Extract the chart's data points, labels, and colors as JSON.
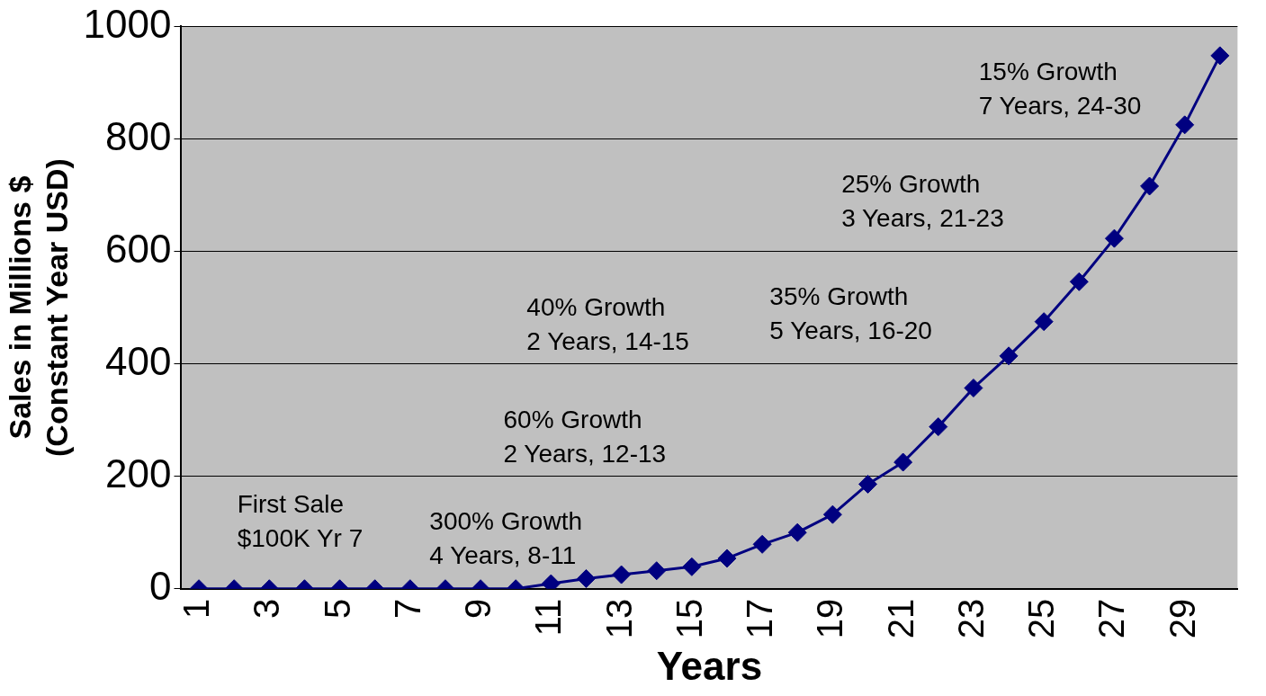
{
  "chart_data": {
    "type": "line",
    "xlabel": "Years",
    "ylabel": "Sales in Millions $\n(Constant Year USD)",
    "categories": [
      "1",
      null,
      "3",
      null,
      "5",
      null,
      "7",
      null,
      "9",
      null,
      "11",
      null,
      "13",
      null,
      "15",
      null,
      "17",
      null,
      "19",
      null,
      "21",
      null,
      "23",
      null,
      "25",
      null,
      "27",
      null,
      "29",
      null
    ],
    "series": [
      {
        "color": "#000080",
        "values": [
          0,
          0,
          0,
          0,
          0,
          0,
          0,
          0,
          0,
          0,
          9,
          18,
          25,
          32,
          39,
          54,
          79,
          100,
          132,
          186,
          225,
          288,
          357,
          414,
          475,
          546,
          623,
          716,
          825,
          948
        ]
      }
    ],
    "ylim": [
      0,
      1000
    ],
    "yticks": [
      0,
      200,
      400,
      600,
      800,
      1000
    ],
    "grid": "y",
    "legend": false,
    "marker": "diamond",
    "line_style": "solid",
    "annotations": [
      "First Sale\n$100K Yr 7",
      "300% Growth\n4 Years, 8-11",
      "60% Growth\n2 Years, 12-13",
      "40% Growth\n2 Years, 14-15",
      "35% Growth\n5 Years, 16-20",
      "25% Growth\n3 Years, 21-23",
      "15% Growth\n7 Years, 24-30"
    ]
  }
}
